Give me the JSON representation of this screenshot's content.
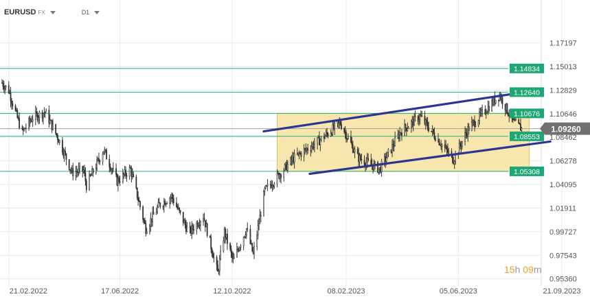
{
  "header": {
    "symbol": "EURUSD",
    "market": "FX",
    "timeframe": "D1"
  },
  "countdown": {
    "hours": "15",
    "hours_unit": "h",
    "minutes": "09",
    "minutes_unit": "m"
  },
  "colors": {
    "candle": "#333333",
    "level_line": "#24b07a",
    "level_label_bg": "#1ea774",
    "trend_line": "#2b3593",
    "range_fill": "#f6e3a0",
    "range_stroke": "#e2c25a",
    "current_price_bg": "#707070",
    "grid": "#e9e9e9",
    "axis_text": "#555555"
  },
  "chart_data": {
    "type": "candlestick",
    "symbol": "EURUSD",
    "timeframe": "D1",
    "grid": true,
    "y_axis": {
      "position": "right",
      "range": [
        0.9515,
        1.1863
      ],
      "ticks": [
        "1.17197",
        "1.15013",
        "1.12829",
        "1.10646",
        "1.08462",
        "1.06278",
        "1.04095",
        "1.01911",
        "0.99727",
        "0.97543",
        "0.95360"
      ]
    },
    "x_axis": {
      "range": [
        "2022-02-14",
        "2023-09-21"
      ],
      "ticks": [
        "21.02.2022",
        "17.06.2022",
        "12.10.2022",
        "08.02.2023",
        "05.06.2023",
        "21.09.2023"
      ]
    },
    "current_price": "1.09260",
    "horizontal_levels": [
      {
        "label": "1.14834",
        "value": 1.14834
      },
      {
        "label": "1.12640",
        "value": 1.1264
      },
      {
        "label": "1.10676",
        "value": 1.10676
      },
      {
        "label": "1.08553",
        "value": 1.08553
      },
      {
        "label": "1.05308",
        "value": 1.05308
      }
    ],
    "range_box": {
      "x_start": "2022-11-28",
      "x_end": "2023-08-18",
      "y_low": 1.05308,
      "y_high": 1.10676
    },
    "trend_lines": [
      {
        "start": [
          "2022-11-14",
          1.0901
        ],
        "end": [
          "2023-08-20",
          1.1273
        ]
      },
      {
        "start": [
          "2023-01-01",
          1.0508
        ],
        "end": [
          "2023-09-09",
          1.0807
        ]
      }
    ],
    "price_path": {
      "note_free": true,
      "points": [
        [
          "2022-02-14",
          1.135
        ],
        [
          "2022-02-21",
          1.128
        ],
        [
          "2022-03-01",
          1.105
        ],
        [
          "2022-03-07",
          1.089
        ],
        [
          "2022-03-18",
          1.103
        ],
        [
          "2022-03-31",
          1.108
        ],
        [
          "2022-04-14",
          1.083
        ],
        [
          "2022-04-28",
          1.052
        ],
        [
          "2022-05-10",
          1.054
        ],
        [
          "2022-05-13",
          1.04
        ],
        [
          "2022-05-31",
          1.073
        ],
        [
          "2022-06-14",
          1.044
        ],
        [
          "2022-06-28",
          1.055
        ],
        [
          "2022-07-14",
          1.0
        ],
        [
          "2022-07-28",
          1.022
        ],
        [
          "2022-08-10",
          1.03
        ],
        [
          "2022-08-28",
          0.996
        ],
        [
          "2022-09-12",
          1.012
        ],
        [
          "2022-09-27",
          0.959
        ],
        [
          "2022-10-04",
          0.997
        ],
        [
          "2022-10-13",
          0.97
        ],
        [
          "2022-10-27",
          1.0
        ],
        [
          "2022-11-03",
          0.976
        ],
        [
          "2022-11-15",
          1.035
        ],
        [
          "2022-12-15",
          1.065
        ],
        [
          "2023-01-13",
          1.083
        ],
        [
          "2023-02-02",
          1.098
        ],
        [
          "2023-02-20",
          1.066
        ],
        [
          "2023-03-15",
          1.055
        ],
        [
          "2023-04-06",
          1.09
        ],
        [
          "2023-04-26",
          1.104
        ],
        [
          "2023-05-31",
          1.064
        ],
        [
          "2023-06-15",
          1.092
        ],
        [
          "2023-07-18",
          1.124
        ],
        [
          "2023-08-01",
          1.099
        ],
        [
          "2023-08-10",
          1.0926
        ]
      ]
    }
  }
}
